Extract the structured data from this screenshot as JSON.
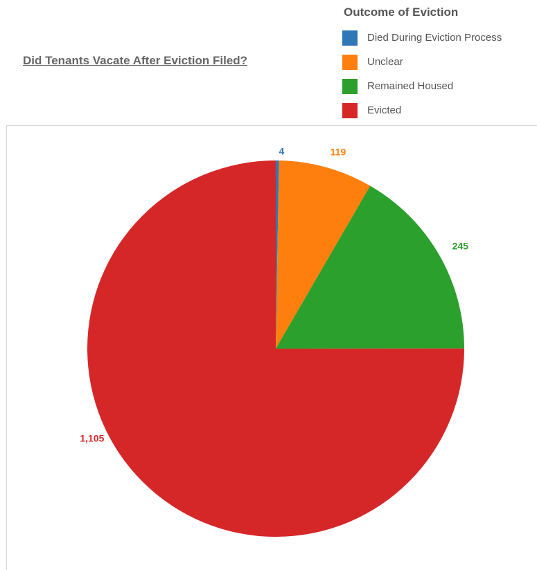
{
  "chart_data": {
    "type": "pie",
    "title": "Did Tenants Vacate After Eviction Filed?",
    "legend_title": "Outcome of Eviction",
    "legend_placement": "top-right",
    "categories": [
      "Died During Eviction Process",
      "Unclear",
      "Remained Housed",
      "Evicted"
    ],
    "values": [
      4,
      119,
      245,
      1105
    ],
    "value_labels": [
      "4",
      "119",
      "245",
      "1,105"
    ],
    "colors": [
      "#2f77b7",
      "#ff7f0e",
      "#2ca02c",
      "#d62728"
    ]
  }
}
